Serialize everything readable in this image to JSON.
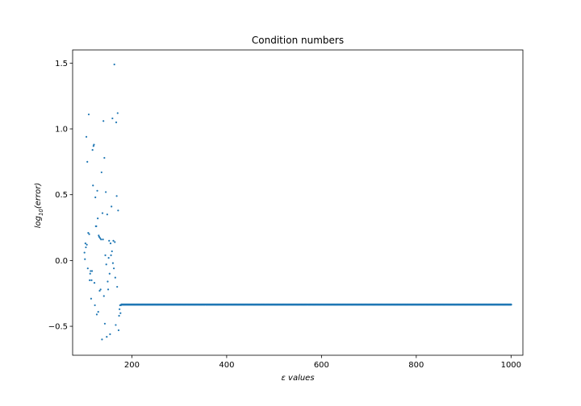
{
  "chart_data": {
    "type": "scatter",
    "title": "Condition numbers",
    "xlabel": "ε values",
    "ylabel": "log10(error)",
    "ylabel_parts": {
      "base": "log",
      "sub": "10",
      "arg": "(error)"
    },
    "xlim": [
      75,
      1025
    ],
    "ylim": [
      -0.72,
      1.6
    ],
    "xticks": [
      200,
      400,
      600,
      800,
      1000
    ],
    "xtick_labels": [
      "200",
      "400",
      "600",
      "800",
      "1000"
    ],
    "yticks": [
      -0.5,
      0.0,
      0.5,
      1.0,
      1.5
    ],
    "ytick_labels": [
      "−0.5",
      "0.0",
      "0.5",
      "1.0",
      "1.5"
    ],
    "grid": false,
    "marker_color": "#1f77b4",
    "series": [
      {
        "points": [
          [
            100,
            0.06
          ],
          [
            101,
            0.01
          ],
          [
            102,
            0.13
          ],
          [
            103,
            0.1
          ],
          [
            104,
            0.94
          ],
          [
            105,
            0.12
          ],
          [
            106,
            0.75
          ],
          [
            107,
            -0.06
          ],
          [
            108,
            0.21
          ],
          [
            109,
            1.11
          ],
          [
            110,
            0.2
          ],
          [
            111,
            -0.15
          ],
          [
            112,
            -0.1
          ],
          [
            113,
            -0.08
          ],
          [
            114,
            -0.29
          ],
          [
            115,
            -0.15
          ],
          [
            116,
            -0.08
          ],
          [
            117,
            0.84
          ],
          [
            118,
            0.57
          ],
          [
            119,
            0.87
          ],
          [
            120,
            0.88
          ],
          [
            121,
            -0.17
          ],
          [
            122,
            -0.34
          ],
          [
            123,
            0.48
          ],
          [
            124,
            0.26
          ],
          [
            125,
            0.26
          ],
          [
            126,
            -0.41
          ],
          [
            127,
            0.53
          ],
          [
            128,
            0.32
          ],
          [
            129,
            -0.39
          ],
          [
            130,
            0.19
          ],
          [
            131,
            0.18
          ],
          [
            132,
            -0.23
          ],
          [
            133,
            0.17
          ],
          [
            134,
            -0.22
          ],
          [
            135,
            0.16
          ],
          [
            136,
            0.67
          ],
          [
            137,
            -0.6
          ],
          [
            138,
            0.36
          ],
          [
            139,
            0.16
          ],
          [
            140,
            1.06
          ],
          [
            141,
            -0.27
          ],
          [
            142,
            0.78
          ],
          [
            143,
            -0.48
          ],
          [
            144,
            0.04
          ],
          [
            145,
            0.52
          ],
          [
            146,
            -0.03
          ],
          [
            147,
            -0.58
          ],
          [
            148,
            0.35
          ],
          [
            149,
            -0.16
          ],
          [
            150,
            -0.22
          ],
          [
            151,
            0.02
          ],
          [
            152,
            0.15
          ],
          [
            153,
            -0.1
          ],
          [
            154,
            -0.56
          ],
          [
            155,
            0.13
          ],
          [
            156,
            0.04
          ],
          [
            157,
            0.41
          ],
          [
            158,
            0.07
          ],
          [
            159,
            1.08
          ],
          [
            160,
            -0.02
          ],
          [
            161,
            0.15
          ],
          [
            162,
            -0.06
          ],
          [
            163,
            1.49
          ],
          [
            164,
            0.14
          ],
          [
            165,
            -0.13
          ],
          [
            166,
            -0.49
          ],
          [
            167,
            1.05
          ],
          [
            168,
            0.49
          ],
          [
            169,
            -0.2
          ],
          [
            170,
            1.12
          ],
          [
            171,
            0.38
          ],
          [
            172,
            -0.53
          ],
          [
            173,
            -0.42
          ],
          [
            174,
            -0.37
          ],
          [
            175,
            -0.34
          ],
          [
            176,
            -0.4
          ],
          [
            177,
            -0.34
          ]
        ],
        "flat": {
          "x_from": 178,
          "x_to": 1000,
          "step": 2,
          "y": -0.335
        }
      }
    ]
  }
}
